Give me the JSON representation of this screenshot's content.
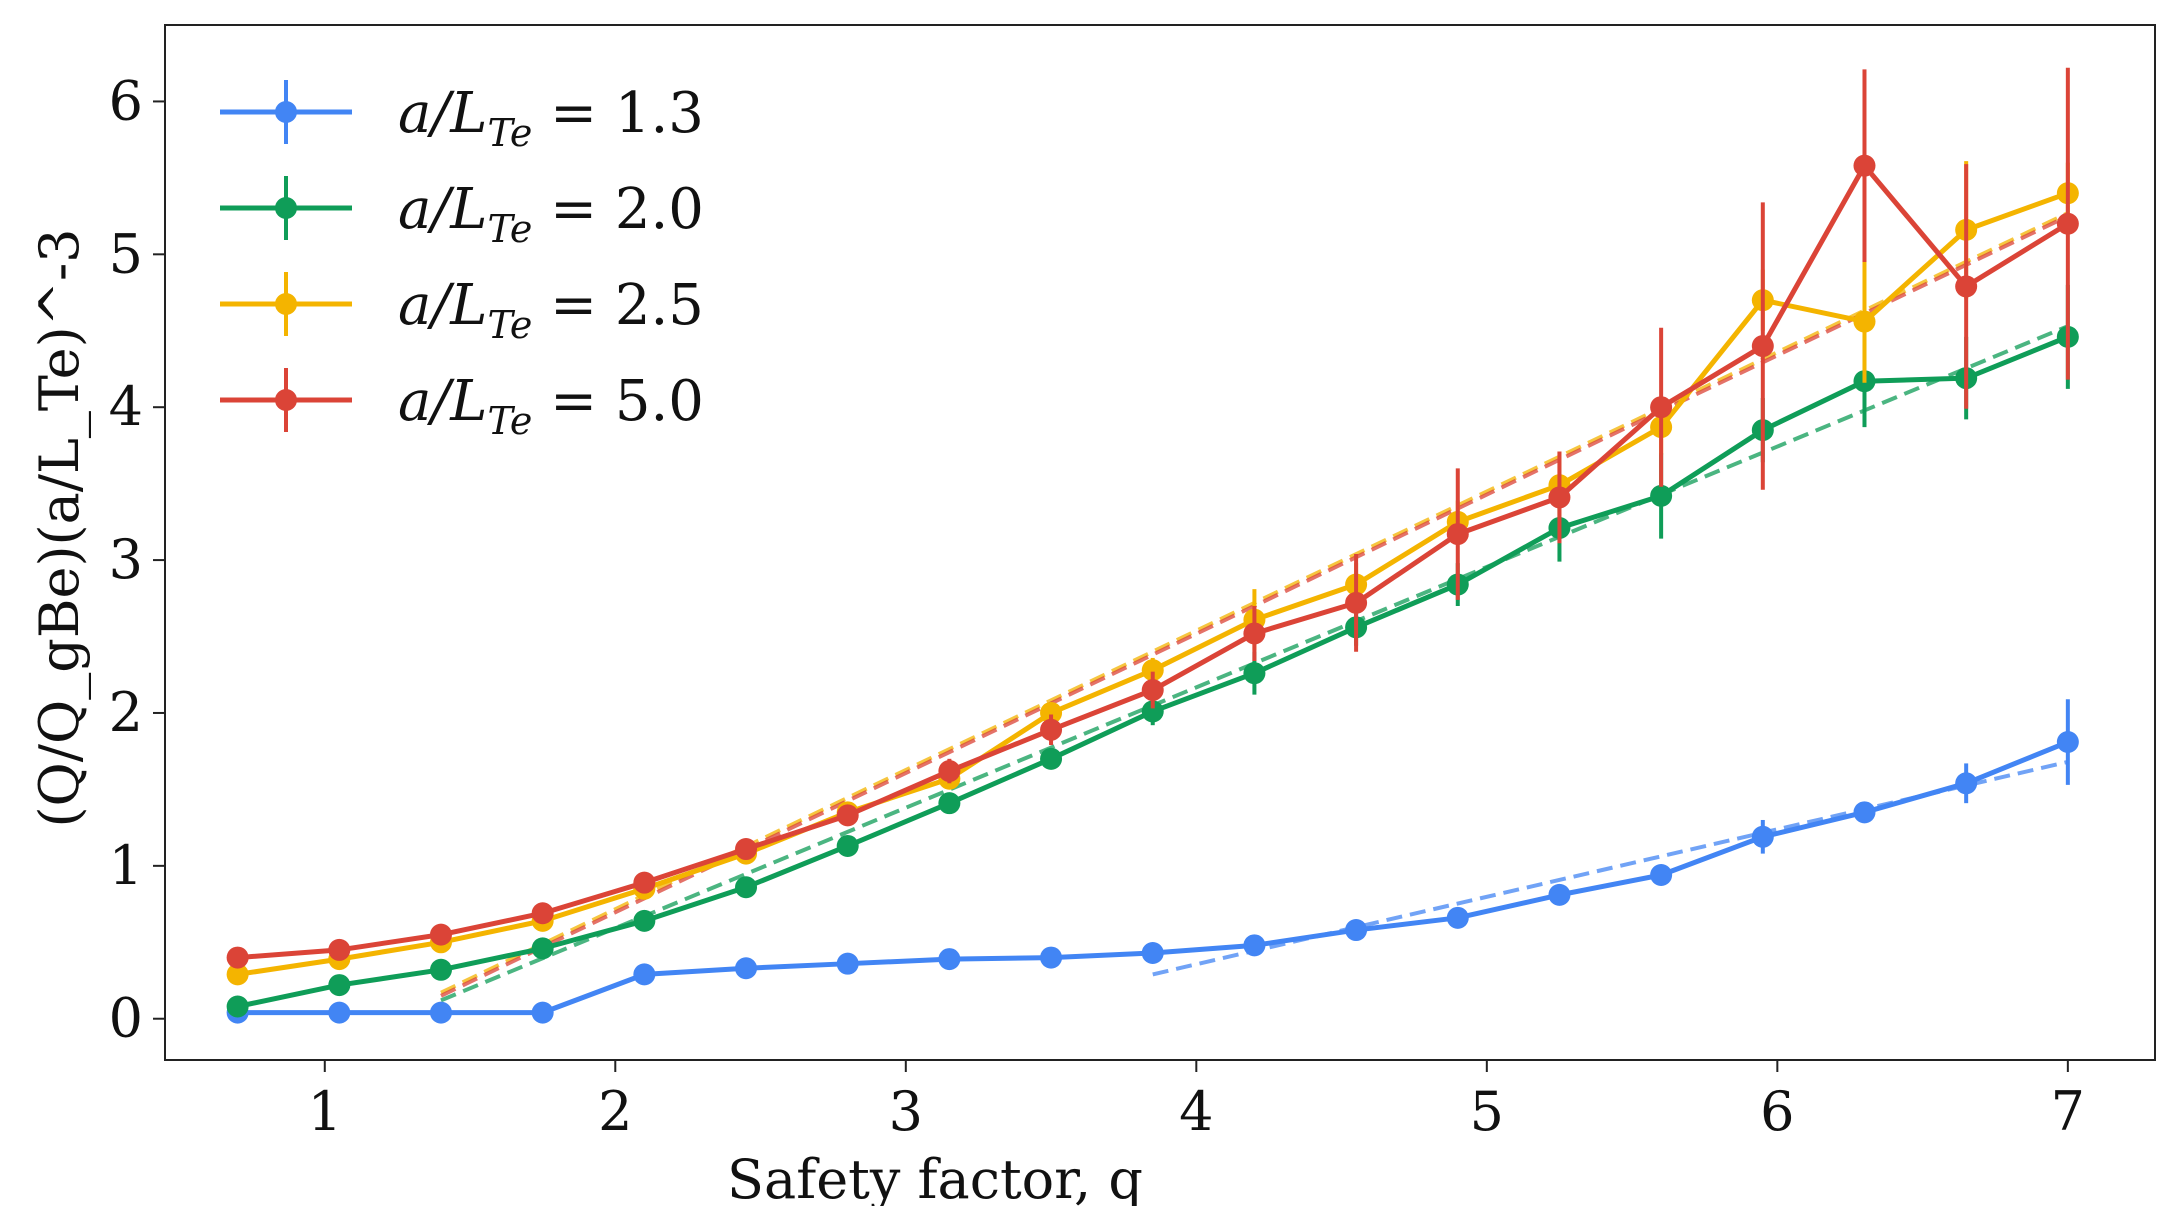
{
  "chart_data": {
    "type": "line",
    "xlabel": "Safety factor, q",
    "ylabel": "(Q/Q_gBe)(a/L_Te)^-3",
    "xlim": [
      0.45,
      7.3
    ],
    "ylim": [
      -0.27,
      6.5
    ],
    "xticks": [
      "1",
      "2",
      "3",
      "4",
      "5",
      "6",
      "7"
    ],
    "yticks": [
      "0",
      "1",
      "2",
      "3",
      "4",
      "5",
      "6"
    ],
    "grid": false,
    "legend_position": "top-left",
    "x": [
      0.7,
      1.05,
      1.4,
      1.75,
      2.1,
      2.45,
      2.8,
      3.15,
      3.5,
      3.85,
      4.2,
      4.55,
      4.9,
      5.25,
      5.6,
      5.95,
      6.3,
      6.65,
      7.0
    ],
    "series": [
      {
        "name": "a/L_Te = 1.3",
        "legend_value": "1.3",
        "color": "#4285f4",
        "values": [
          0.04,
          0.04,
          0.04,
          0.04,
          0.29,
          0.33,
          0.36,
          0.39,
          0.4,
          0.43,
          0.48,
          0.58,
          0.66,
          0.81,
          0.94,
          1.19,
          1.35,
          1.54,
          1.81
        ],
        "errors": [
          0,
          0,
          0,
          0,
          0,
          0,
          0,
          0,
          0,
          0,
          0,
          0,
          0.03,
          0.04,
          0.05,
          0.11,
          0.05,
          0.13,
          0.28
        ],
        "fit": [
          [
            3.85,
            0.29
          ],
          [
            7.0,
            1.68
          ]
        ]
      },
      {
        "name": "a/L_Te = 2.0",
        "legend_value": "2.0",
        "color": "#0f9d58",
        "values": [
          0.08,
          0.22,
          0.32,
          0.46,
          0.64,
          0.86,
          1.13,
          1.41,
          1.7,
          2.01,
          2.26,
          2.56,
          2.84,
          3.21,
          3.42,
          3.85,
          4.17,
          4.19,
          4.46
        ],
        "errors": [
          0,
          0,
          0,
          0,
          0,
          0,
          0,
          0,
          0.06,
          0.09,
          0.14,
          0.12,
          0.14,
          0.22,
          0.28,
          0.21,
          0.3,
          0.27,
          0.34
        ],
        "fit": [
          [
            1.4,
            0.12
          ],
          [
            7.0,
            4.53
          ]
        ]
      },
      {
        "name": "a/L_Te = 2.5",
        "legend_value": "2.5",
        "color": "#f4b400",
        "values": [
          0.29,
          0.39,
          0.5,
          0.64,
          0.85,
          1.08,
          1.35,
          1.57,
          2.0,
          2.28,
          2.61,
          2.84,
          3.25,
          3.49,
          3.87,
          4.7,
          4.56,
          5.16,
          5.4
        ],
        "errors": [
          0,
          0,
          0,
          0,
          0,
          0,
          0,
          0,
          0,
          0.08,
          0.2,
          0.14,
          0.14,
          0.22,
          0.18,
          0.2,
          0.4,
          0.45,
          0.2
        ],
        "fit": [
          [
            1.4,
            0.17
          ],
          [
            7.0,
            5.27
          ]
        ]
      },
      {
        "name": "a/L_Te = 5.0",
        "legend_value": "5.0",
        "color": "#db4437",
        "values": [
          0.4,
          0.45,
          0.55,
          0.69,
          0.89,
          1.11,
          1.33,
          1.62,
          1.89,
          2.15,
          2.52,
          2.72,
          3.17,
          3.41,
          4.0,
          4.4,
          5.58,
          4.79,
          5.2
        ],
        "errors": [
          0,
          0,
          0,
          0,
          0,
          0,
          0.06,
          0.08,
          0.1,
          0.12,
          0.18,
          0.32,
          0.43,
          0.3,
          0.52,
          0.94,
          0.63,
          0.8,
          1.02
        ],
        "fit": [
          [
            1.4,
            0.15
          ],
          [
            7.0,
            5.25
          ]
        ]
      }
    ]
  }
}
